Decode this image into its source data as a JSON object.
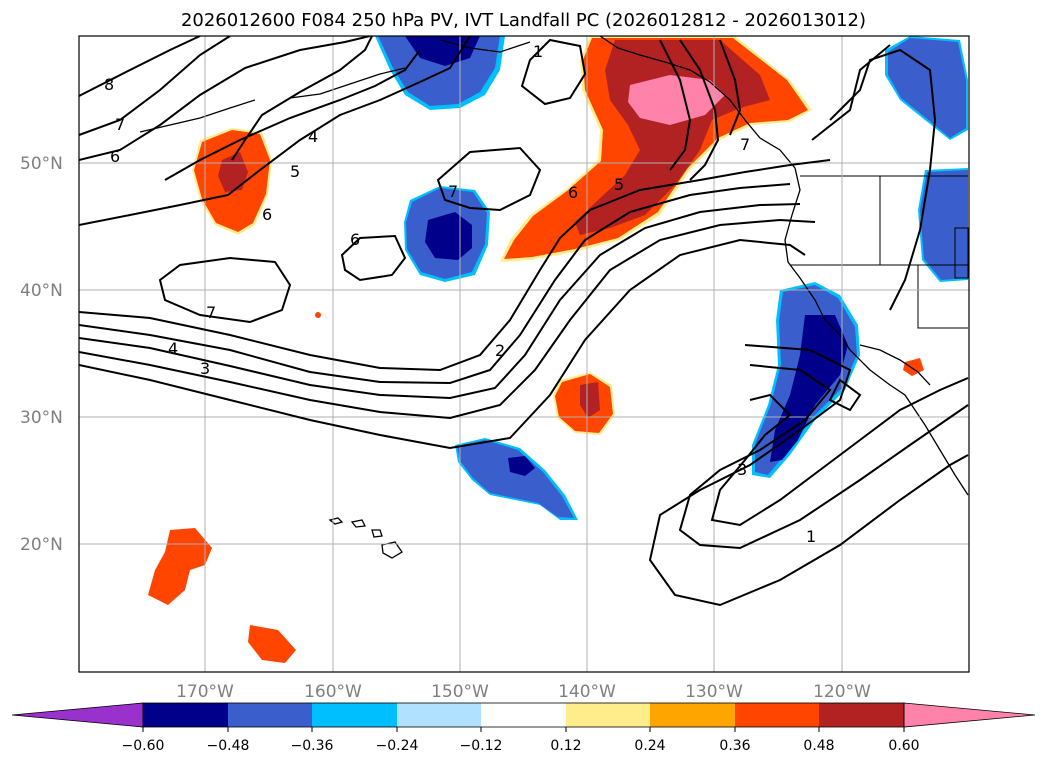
{
  "title": "2026012600 F084 250 hPa PV, IVT Landfall PC (2026012812 - 2026013012)",
  "lat_labels": [
    "50°N",
    "40°N",
    "30°N",
    "20°N"
  ],
  "lon_labels": [
    "170°W",
    "160°W",
    "150°W",
    "140°W",
    "130°W",
    "120°W"
  ],
  "contour_labels": [
    "8",
    "7",
    "6",
    "4",
    "5",
    "6",
    "7",
    "6",
    "7",
    "4",
    "3",
    "2",
    "6",
    "5",
    "1",
    "7",
    "3",
    "1"
  ],
  "colorbar": {
    "ticks": [
      "−0.60",
      "−0.48",
      "−0.36",
      "−0.24",
      "−0.12",
      "0.12",
      "0.24",
      "0.36",
      "0.48",
      "0.60"
    ],
    "colors": [
      "#9932cc",
      "#00008b",
      "#3a5fcd",
      "#00bfff",
      "#b0e2ff",
      "#ffffff",
      "#ffec8b",
      "#ffa500",
      "#ff4500",
      "#b22222",
      "#ff82ab"
    ]
  }
}
